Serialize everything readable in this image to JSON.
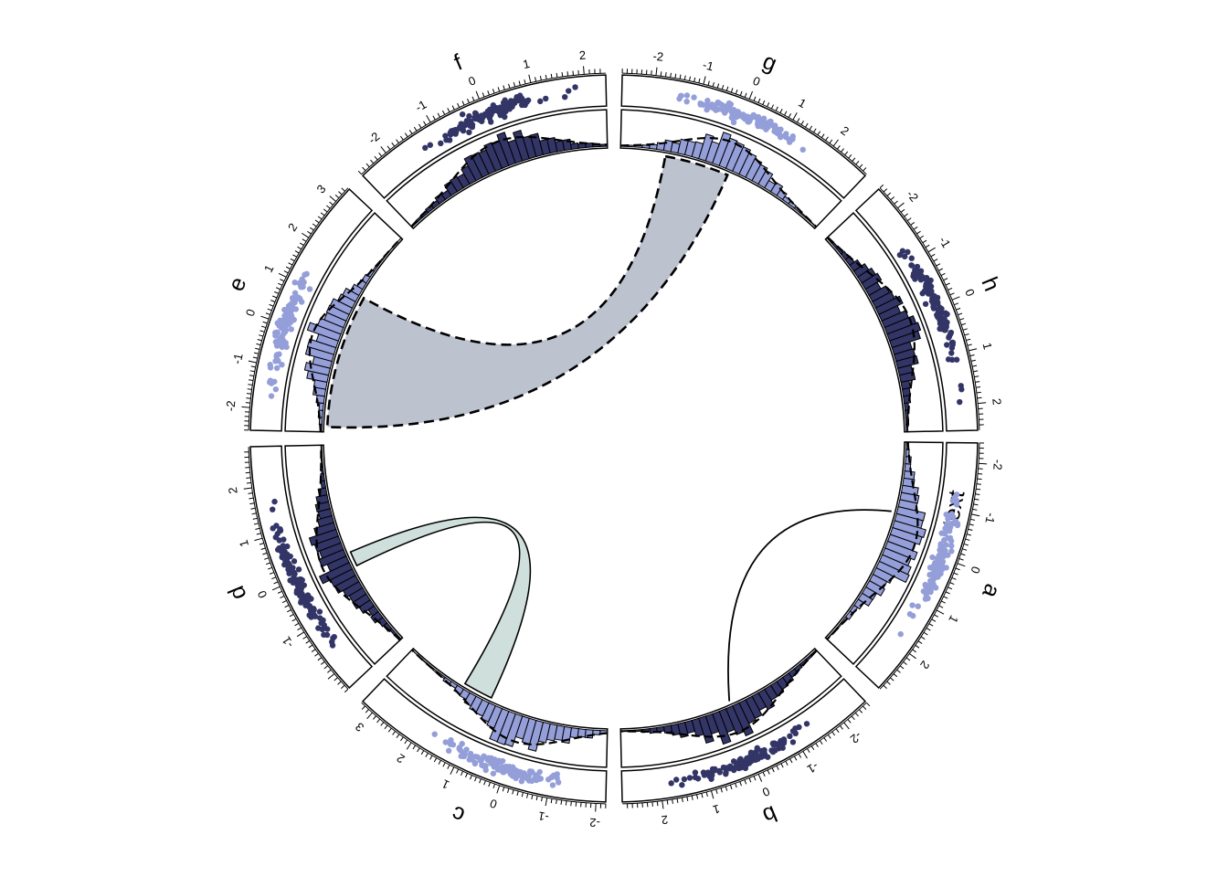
{
  "chart_data": {
    "type": "circular",
    "palette": {
      "dark": "#323566",
      "light": "#949ed8",
      "link_gray": "#bdc2cf",
      "link_teal": "#cfe0dc"
    },
    "sectors": [
      {
        "name": "a",
        "extra_label": "text",
        "point_color": "light",
        "bar_color": "light",
        "ticks": [
          "-2",
          "-1",
          "0",
          "1",
          "2"
        ],
        "xlim": [
          -2.4,
          2.9
        ]
      },
      {
        "name": "b",
        "point_color": "dark",
        "bar_color": "dark",
        "ticks": [
          "-2",
          "-1",
          "0",
          "1",
          "2"
        ],
        "xlim": [
          -2.6,
          2.8
        ]
      },
      {
        "name": "c",
        "point_color": "light",
        "bar_color": "light",
        "ticks": [
          "-2",
          "-1",
          "0",
          "1",
          "2",
          "3"
        ],
        "xlim": [
          -2.2,
          3.3
        ]
      },
      {
        "name": "d",
        "point_color": "dark",
        "bar_color": "dark",
        "ticks": [
          "-1",
          "0",
          "1",
          "2"
        ],
        "xlim": [
          -2.4,
          2.8
        ]
      },
      {
        "name": "e",
        "point_color": "light",
        "bar_color": "light",
        "ticks": [
          "-2",
          "-1",
          "0",
          "1",
          "2",
          "3"
        ],
        "xlim": [
          -2.5,
          3.4
        ]
      },
      {
        "name": "f",
        "point_color": "dark",
        "bar_color": "dark",
        "ticks": [
          "-2",
          "-1",
          "0",
          "1",
          "2"
        ],
        "xlim": [
          -2.6,
          2.4
        ]
      },
      {
        "name": "g",
        "point_color": "light",
        "bar_color": "light",
        "ticks": [
          "-2",
          "-1",
          "0",
          "1",
          "2"
        ],
        "xlim": [
          -2.7,
          2.9
        ]
      },
      {
        "name": "h",
        "point_color": "dark",
        "bar_color": "dark",
        "ticks": [
          "-2",
          "-1",
          "0",
          "1",
          "2"
        ],
        "xlim": [
          -2.5,
          2.5
        ]
      }
    ],
    "links": [
      {
        "from": "g",
        "to": "e",
        "style": "dashed",
        "fill": "link_gray"
      },
      {
        "from": "d",
        "to": "c",
        "style": "solid",
        "fill": "link_teal"
      },
      {
        "from": "a",
        "to": "b",
        "style": "line",
        "fill": "none"
      }
    ]
  }
}
